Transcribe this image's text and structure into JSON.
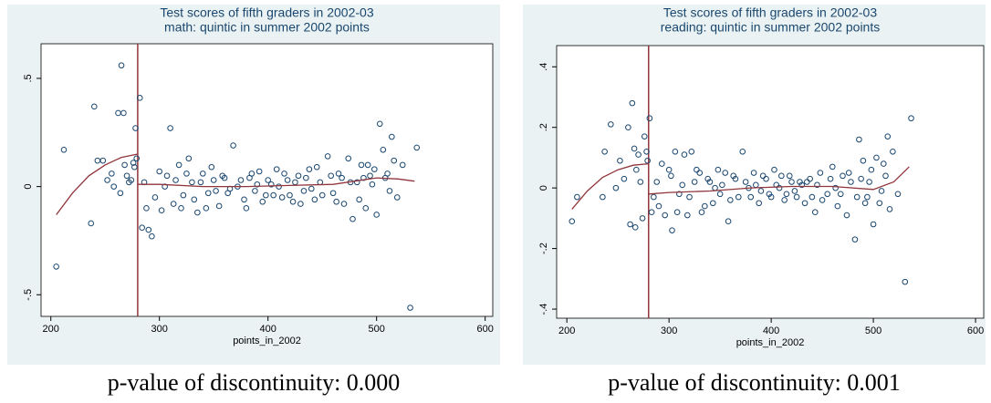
{
  "chart_data": [
    {
      "type": "scatter",
      "title": "Test scores of fifth graders in 2002-03",
      "subtitle": "math: quintic in summer 2002 points",
      "x_label": "points_in_2002",
      "caption": "p-value of discontinuity: 0.000",
      "background": "#eaf2f3",
      "point_color": "#1a476f",
      "line_color": "#90353b",
      "xlim": [
        191,
        607
      ],
      "ylim": [
        -0.6,
        0.66
      ],
      "xticks": [
        200,
        300,
        400,
        500,
        600
      ],
      "yticks": [
        {
          "value": -0.5,
          "label": "-.5"
        },
        0,
        {
          "value": 0.5,
          "label": ".5"
        }
      ],
      "vline": 280,
      "points": {
        "x": [
          205,
          212,
          237,
          240,
          243,
          248,
          252,
          256,
          258,
          262,
          264,
          265,
          267,
          268,
          270,
          272,
          274,
          276,
          277,
          278,
          279,
          282,
          284,
          286,
          288,
          290,
          293,
          296,
          300,
          305,
          310,
          313,
          318,
          322,
          327,
          332,
          338,
          343,
          348,
          352,
          358,
          363,
          368,
          372,
          378,
          383,
          388,
          392,
          398,
          403,
          408,
          413,
          418,
          423,
          428,
          433,
          438,
          443,
          448,
          455,
          460,
          465,
          470,
          474,
          478,
          482,
          486,
          490,
          494,
          498,
          500,
          503,
          506,
          510,
          514,
          519,
          524,
          531,
          537,
          302,
          307,
          315,
          320,
          325,
          330,
          335,
          340,
          345,
          350,
          355,
          360,
          365,
          375,
          380,
          385,
          390,
          395,
          400,
          405,
          410,
          415,
          420,
          425,
          430,
          435,
          440,
          445,
          450,
          458,
          463,
          468,
          476,
          484,
          488,
          492,
          496,
          508,
          512,
          516
        ],
        "y": [
          -0.37,
          0.17,
          -0.17,
          0.37,
          0.12,
          0.12,
          0.03,
          0.06,
          0.0,
          0.34,
          -0.03,
          0.56,
          0.34,
          0.1,
          0.05,
          0.02,
          0.03,
          0.11,
          0.09,
          0.27,
          0.13,
          0.41,
          -0.19,
          0.02,
          -0.1,
          -0.2,
          -0.23,
          -0.05,
          0.07,
          0.0,
          0.27,
          -0.08,
          0.1,
          -0.04,
          0.13,
          -0.06,
          0.02,
          -0.1,
          0.09,
          -0.02,
          0.05,
          -0.03,
          0.19,
          0.0,
          -0.06,
          0.04,
          -0.02,
          0.07,
          -0.04,
          0.01,
          0.08,
          -0.05,
          0.03,
          -0.07,
          0.05,
          -0.02,
          0.08,
          -0.06,
          0.02,
          0.14,
          -0.03,
          0.06,
          -0.08,
          0.13,
          -0.15,
          0.02,
          0.1,
          -0.1,
          0.05,
          0.08,
          -0.13,
          0.29,
          0.17,
          0.06,
          0.23,
          -0.05,
          0.1,
          -0.56,
          0.18,
          -0.11,
          0.05,
          0.03,
          -0.1,
          0.06,
          0.02,
          -0.12,
          0.06,
          -0.03,
          0.03,
          -0.09,
          0.04,
          -0.01,
          0.03,
          -0.1,
          0.06,
          0.01,
          -0.07,
          0.03,
          -0.04,
          0.0,
          0.06,
          -0.04,
          0.02,
          -0.08,
          0.04,
          -0.01,
          0.09,
          -0.04,
          0.05,
          -0.07,
          0.04,
          0.02,
          -0.06,
          0.04,
          0.1,
          0.01,
          0.04,
          -0.02,
          0.12
        ]
      },
      "fit": [
        {
          "x": [
            205,
            220,
            235,
            250,
            265,
            280
          ],
          "y": [
            -0.13,
            -0.03,
            0.05,
            0.1,
            0.135,
            0.15
          ]
        },
        {
          "x": [
            280,
            300,
            340,
            380,
            420,
            460,
            500,
            520,
            535
          ],
          "y": [
            0.01,
            0.01,
            0.0,
            0.0,
            0.005,
            0.01,
            0.04,
            0.035,
            0.025
          ]
        }
      ]
    },
    {
      "type": "scatter",
      "title": "Test scores of fifth graders in 2002-03",
      "subtitle": "reading: quintic in summer 2002 points",
      "x_label": "points_in_2002",
      "caption": "p-value of discontinuity: 0.001",
      "background": "#eaf2f3",
      "point_color": "#1a476f",
      "line_color": "#90353b",
      "xlim": [
        190,
        608
      ],
      "ylim": [
        -0.43,
        0.47
      ],
      "xticks": [
        200,
        300,
        400,
        500,
        600
      ],
      "yticks": [
        {
          "value": -0.4,
          "label": "-.4"
        },
        {
          "value": -0.2,
          "label": "-.2"
        },
        0,
        {
          "value": 0.2,
          "label": ".2"
        },
        {
          "value": 0.4,
          "label": ".4"
        }
      ],
      "vline": 280,
      "points": {
        "x": [
          205,
          210,
          235,
          237,
          243,
          248,
          252,
          256,
          260,
          262,
          264,
          266,
          267,
          268,
          270,
          272,
          274,
          276,
          278,
          279,
          281,
          283,
          285,
          288,
          290,
          293,
          296,
          300,
          303,
          306,
          310,
          315,
          318,
          322,
          327,
          332,
          338,
          343,
          348,
          352,
          358,
          363,
          368,
          372,
          378,
          383,
          388,
          392,
          398,
          403,
          408,
          413,
          418,
          423,
          428,
          433,
          438,
          443,
          448,
          455,
          460,
          465,
          470,
          474,
          478,
          482,
          486,
          490,
          494,
          498,
          500,
          503,
          506,
          510,
          514,
          519,
          524,
          531,
          537,
          302,
          308,
          313,
          320,
          325,
          330,
          335,
          340,
          345,
          350,
          355,
          360,
          365,
          375,
          380,
          385,
          390,
          395,
          400,
          405,
          410,
          415,
          420,
          425,
          430,
          435,
          440,
          445,
          450,
          458,
          463,
          468,
          476,
          484,
          488,
          492,
          496,
          508,
          512,
          516
        ],
        "y": [
          -0.11,
          -0.03,
          -0.03,
          0.12,
          0.21,
          0.0,
          0.09,
          0.03,
          0.2,
          -0.12,
          0.28,
          0.13,
          -0.13,
          0.06,
          0.11,
          0.02,
          -0.1,
          0.17,
          0.12,
          0.09,
          0.23,
          -0.08,
          -0.03,
          0.02,
          -0.06,
          0.08,
          -0.09,
          0.06,
          -0.14,
          0.12,
          -0.02,
          0.11,
          -0.09,
          0.12,
          0.06,
          -0.08,
          0.03,
          -0.05,
          0.06,
          0.01,
          -0.11,
          0.04,
          -0.03,
          0.12,
          0.0,
          0.05,
          -0.05,
          0.04,
          -0.02,
          0.06,
          0.0,
          -0.04,
          0.04,
          -0.01,
          0.02,
          -0.05,
          0.03,
          -0.08,
          0.05,
          -0.02,
          0.07,
          -0.06,
          0.04,
          -0.09,
          0.02,
          -0.17,
          0.16,
          0.09,
          -0.03,
          0.06,
          -0.12,
          0.1,
          -0.05,
          0.08,
          0.17,
          0.12,
          -0.02,
          -0.31,
          0.23,
          0.04,
          -0.08,
          0.01,
          -0.03,
          0.02,
          0.05,
          -0.06,
          0.02,
          0.0,
          -0.02,
          0.05,
          -0.04,
          0.03,
          0.02,
          -0.03,
          0.01,
          -0.01,
          0.03,
          -0.03,
          0.01,
          0.04,
          -0.02,
          0.02,
          -0.03,
          0.01,
          0.02,
          -0.03,
          0.01,
          -0.04,
          0.03,
          0.0,
          -0.02,
          0.05,
          -0.03,
          0.03,
          -0.05,
          0.02,
          -0.01,
          0.04,
          -0.07
        ]
      },
      "fit": [
        {
          "x": [
            205,
            220,
            235,
            250,
            265,
            280
          ],
          "y": [
            -0.07,
            -0.01,
            0.035,
            0.06,
            0.075,
            0.08
          ]
        },
        {
          "x": [
            280,
            300,
            340,
            380,
            420,
            460,
            500,
            520,
            535
          ],
          "y": [
            -0.02,
            -0.015,
            -0.01,
            0.0,
            0.005,
            0.005,
            -0.005,
            0.02,
            0.07
          ]
        }
      ]
    }
  ]
}
